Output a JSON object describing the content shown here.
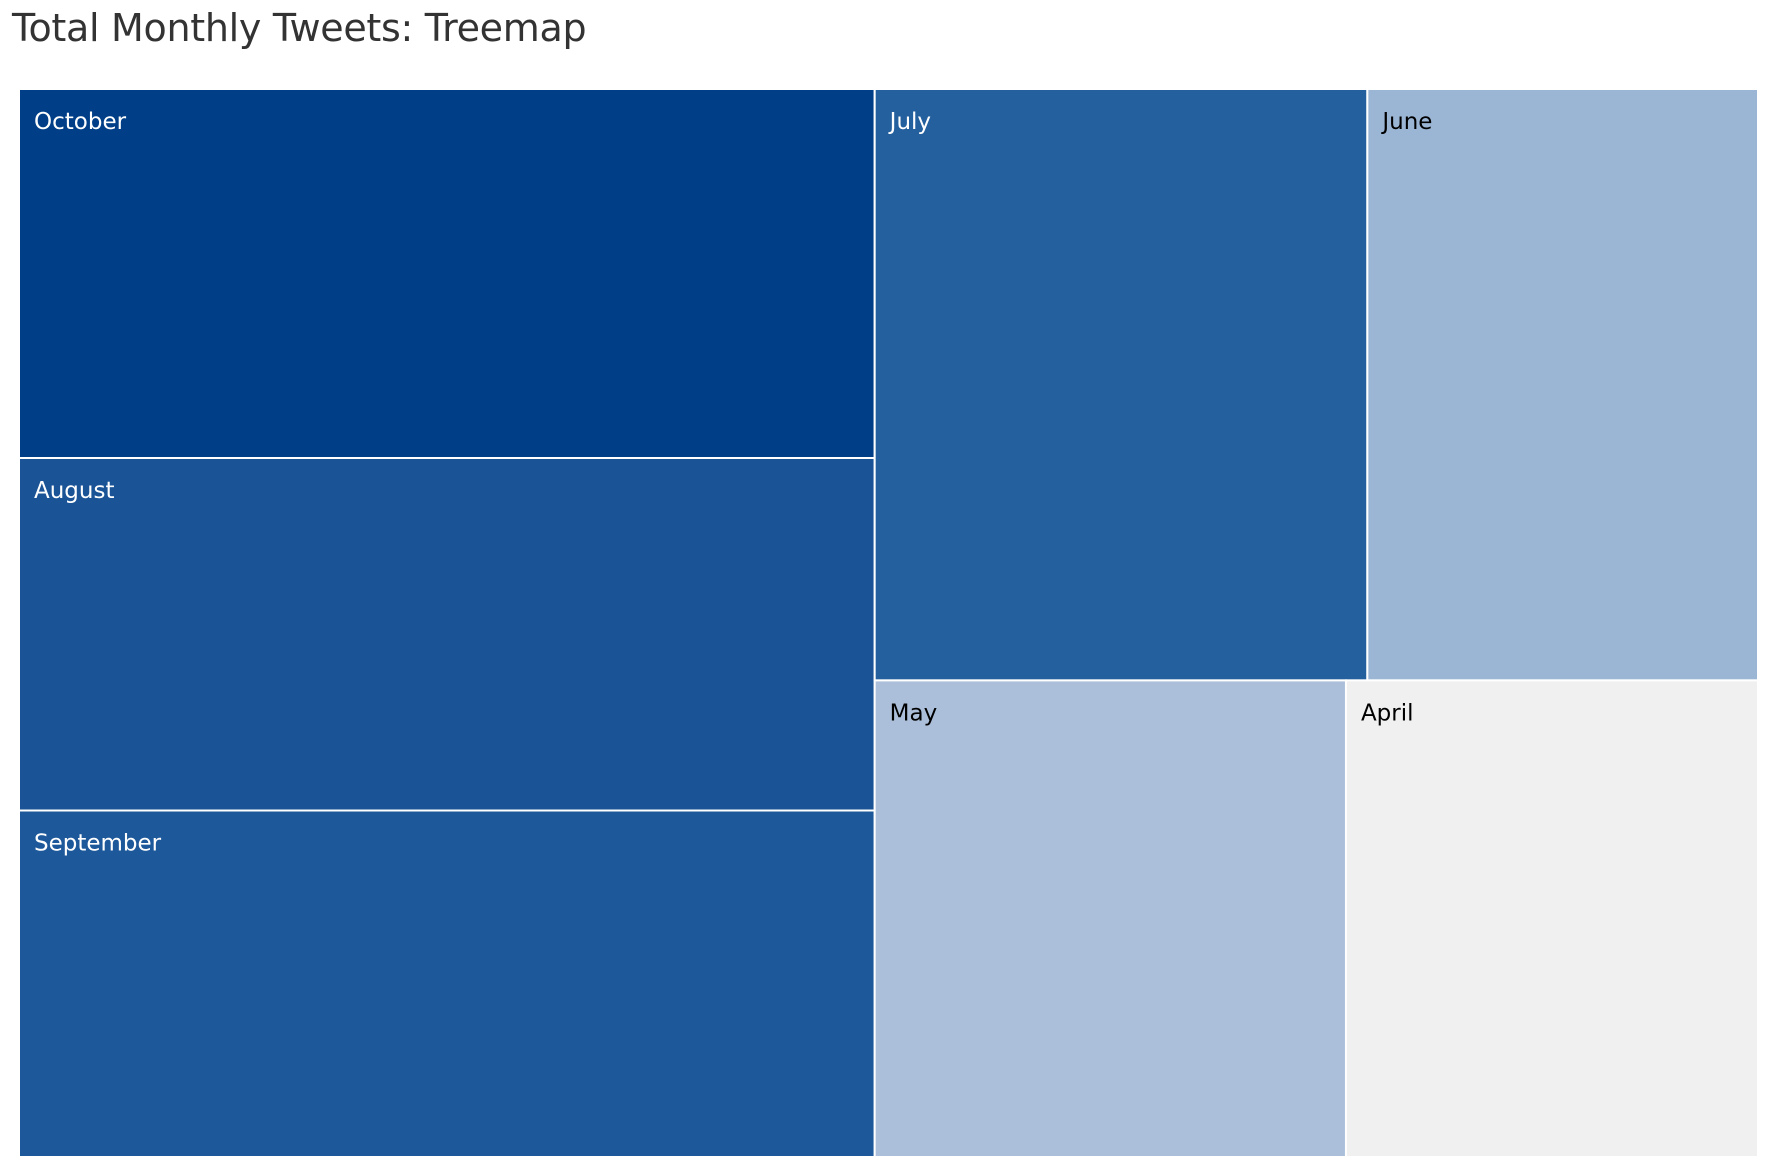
{
  "chart_data": {
    "type": "treemap",
    "title": "Total Monthly Tweets: Treemap",
    "tiles": [
      {
        "label": "October",
        "value": 246,
        "color": "#003f87",
        "text_color": "#ffffff"
      },
      {
        "label": "August",
        "value": 235,
        "color": "#1a5396",
        "text_color": "#ffffff"
      },
      {
        "label": "September",
        "value": 231,
        "color": "#1d589a",
        "text_color": "#ffffff"
      },
      {
        "label": "July",
        "value": 227,
        "color": "#245f9e",
        "text_color": "#ffffff"
      },
      {
        "label": "June",
        "value": 180,
        "color": "#9bb6d5",
        "text_color": "#000000"
      },
      {
        "label": "May",
        "value": 175,
        "color": "#abbfda",
        "text_color": "#000000"
      },
      {
        "label": "April",
        "value": 153,
        "color": "#f0f0f0",
        "text_color": "#000000"
      }
    ]
  }
}
